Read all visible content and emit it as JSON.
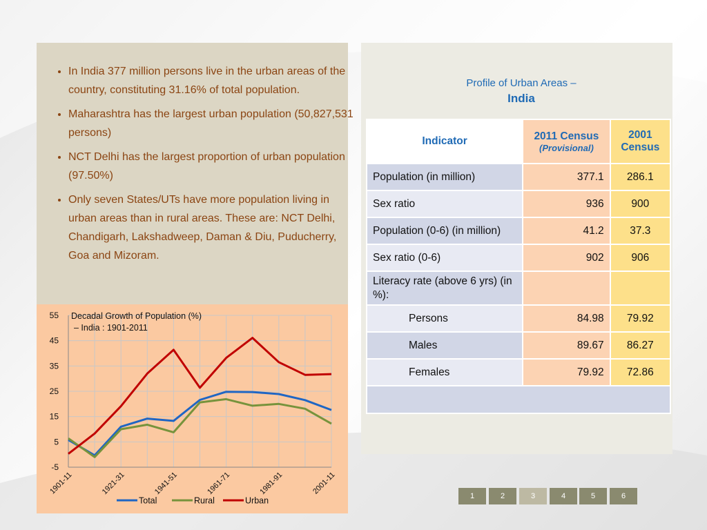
{
  "bullets": [
    "In India 377 million persons live in the urban areas of the country, constituting  31.16% of total population.",
    "Maharashtra has the largest urban population (50,827,531 persons)",
    "NCT Delhi has the largest proportion of urban population (97.50%)",
    "Only seven States/UTs have more population living in urban areas than in rural areas. These are: NCT Delhi, Chandigarh, Lakshadweep, Daman & Diu, Puducherry, Goa and Mizoram."
  ],
  "profile": {
    "title": "Profile of Urban Areas –",
    "subtitle": "India",
    "headers": {
      "indicator": "Indicator",
      "col2011": "2011 Census",
      "col2011_note": "(Provisional)",
      "col2001": "2001 Census"
    },
    "rows": [
      {
        "label": "Population (in million)",
        "v2011": "377.1",
        "v2001": "286.1"
      },
      {
        "label": "Sex ratio",
        "v2011": "936",
        "v2001": "900"
      },
      {
        "label": "Population (0-6) (in million)",
        "v2011": "41.2",
        "v2001": "37.3"
      },
      {
        "label": "Sex ratio (0-6)",
        "v2011": "902",
        "v2001": "906"
      },
      {
        "label": "Literacy rate (above 6 yrs) (in %):",
        "v2011": "",
        "v2001": ""
      },
      {
        "label": "Persons",
        "v2011": "84.98",
        "v2001": "79.92"
      },
      {
        "label": "Males",
        "v2011": "89.67",
        "v2001": "86.27"
      },
      {
        "label": "Females",
        "v2011": "79.92",
        "v2001": "72.86"
      }
    ]
  },
  "pager": {
    "pages": [
      "1",
      "2",
      "3",
      "4",
      "5",
      "6"
    ],
    "active": "3"
  },
  "colors": {
    "total": "#1f66c4",
    "rural": "#77933c",
    "urban": "#c00000",
    "chart_bg": "#fbc9a1",
    "grid": "#c8c8c8"
  },
  "chart_data": {
    "type": "line",
    "title": "Decadal Growth of Population (%)",
    "subtitle": "– India : 1901-2011",
    "x": [
      "1901-11",
      "1911-21",
      "1921-31",
      "1931-41",
      "1941-51",
      "1951-61",
      "1961-71",
      "1971-81",
      "1981-91",
      "1991-01",
      "2001-11"
    ],
    "x_tick_labels": [
      "1901-11",
      "1921-31",
      "1941-51",
      "1961-71",
      "1981-91",
      "2001-11"
    ],
    "y_ticks": [
      -5,
      5,
      15,
      25,
      35,
      45,
      55
    ],
    "ylim": [
      -5,
      55
    ],
    "grid": true,
    "legend": "bottom",
    "series": [
      {
        "name": "Total",
        "values": [
          5.8,
          -0.3,
          11.0,
          14.2,
          13.3,
          21.6,
          24.8,
          24.7,
          23.9,
          21.5,
          17.6
        ]
      },
      {
        "name": "Rural",
        "values": [
          6.4,
          -1.0,
          10.0,
          11.8,
          8.8,
          20.6,
          21.9,
          19.3,
          20.0,
          18.1,
          12.2
        ]
      },
      {
        "name": "Urban",
        "values": [
          0.3,
          8.3,
          19.1,
          32.0,
          41.4,
          26.4,
          38.2,
          46.1,
          36.5,
          31.5,
          31.8
        ]
      }
    ]
  }
}
